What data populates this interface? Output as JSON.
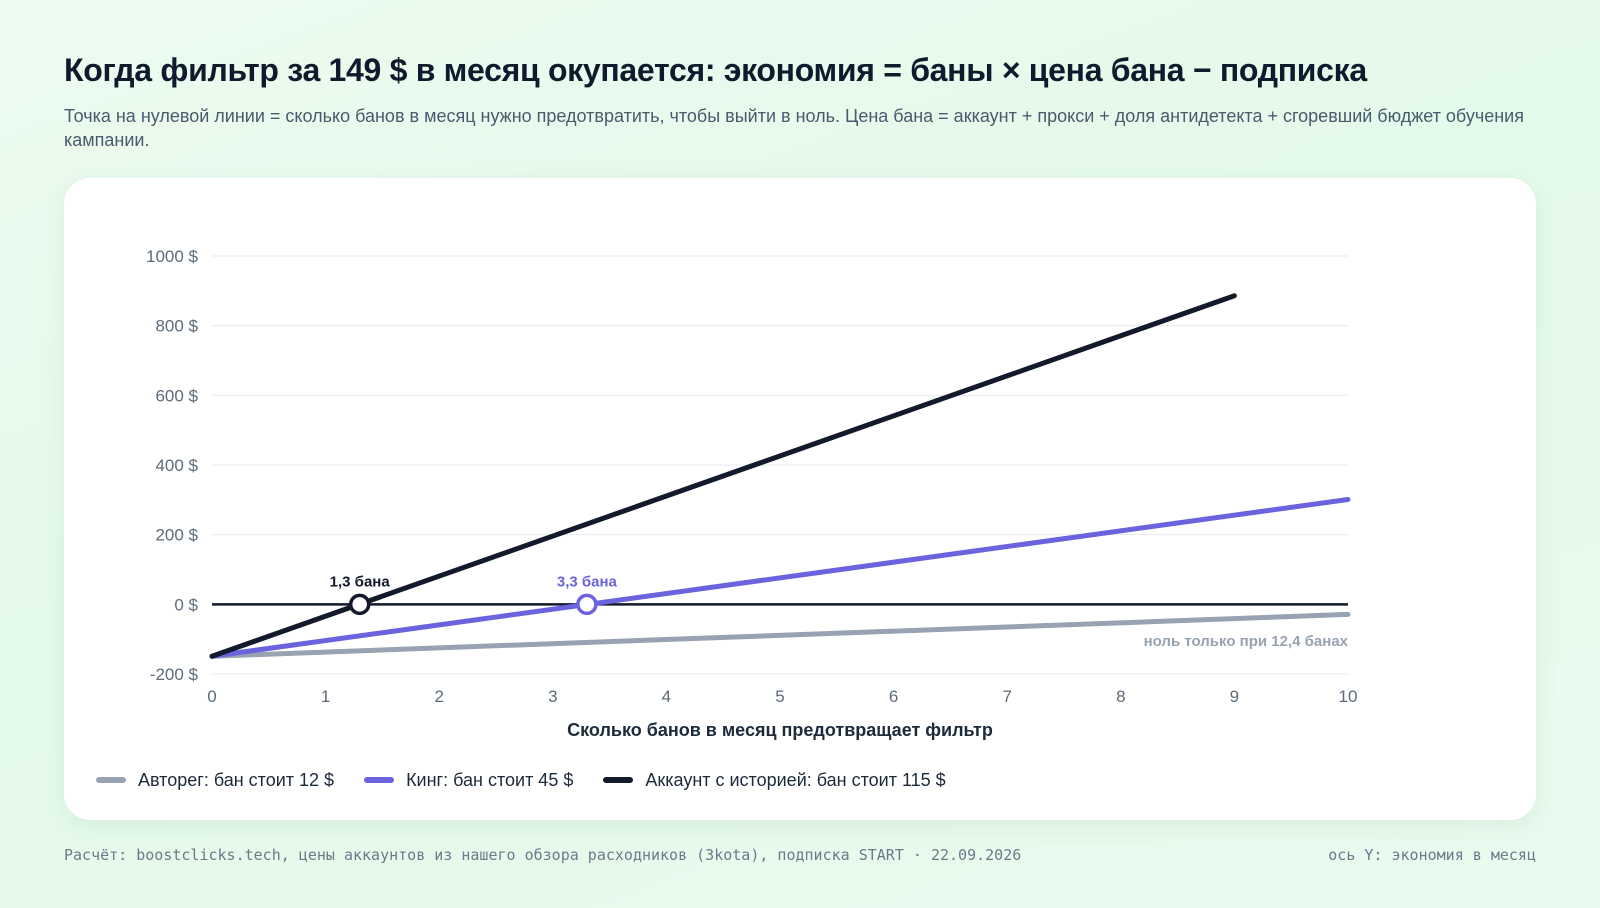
{
  "header": {
    "title": "Когда фильтр за 149 $ в месяц окупается: экономия = баны × цена бана − подписка",
    "subtitle": "Точка на нулевой линии = сколько банов в месяц нужно предотвратить, чтобы выйти в ноль. Цена бана = аккаунт + прокси + доля антидетекта + сгоревший бюджет обучения кампании."
  },
  "chart_data": {
    "type": "line",
    "title": "Когда фильтр за 149 $ в месяц окупается: экономия = баны × цена бана − подписка",
    "xlabel": "Сколько банов в месяц предотвращает фильтр",
    "ylabel": "ось Y: экономия в месяц",
    "xlim": [
      0,
      10
    ],
    "ylim": [
      -200,
      1000
    ],
    "x_ticks": [
      "0",
      "1",
      "2",
      "3",
      "4",
      "5",
      "6",
      "7",
      "8",
      "9",
      "10"
    ],
    "y_ticks": [
      {
        "value": 1000,
        "label": "1000 $"
      },
      {
        "value": 800,
        "label": "800 $"
      },
      {
        "value": 600,
        "label": "600 $"
      },
      {
        "value": 400,
        "label": "400 $"
      },
      {
        "value": 200,
        "label": "200 $"
      },
      {
        "value": 0,
        "label": "0 $"
      },
      {
        "value": -200,
        "label": "-200 $"
      }
    ],
    "grid": true,
    "legend_position": "bottom-left",
    "series": [
      {
        "name": "Авторег: бан стоит 12 $",
        "color": "#97a3b0",
        "x": [
          0,
          10
        ],
        "y": [
          -149,
          -29
        ]
      },
      {
        "name": "Кинг: бан стоит 45 $",
        "color": "#6b63dd",
        "x": [
          0,
          10
        ],
        "y": [
          -149,
          301
        ]
      },
      {
        "name": "Аккаунт с историей: бан стоит 115 $",
        "color": "#121a2c",
        "x": [
          0,
          9
        ],
        "y": [
          -149,
          886
        ]
      }
    ],
    "annotations": [
      {
        "text": "1,3 бана",
        "x": 1.3,
        "y": 0,
        "color": "#121a2c",
        "marker": true
      },
      {
        "text": "3,3 бана",
        "x": 3.3,
        "y": 0,
        "color": "#6b63dd",
        "marker": true
      },
      {
        "text": "ноль только при 12,4 банах",
        "x": 10,
        "y": -105,
        "color": "#97a3b0",
        "marker": false
      }
    ]
  },
  "footer": {
    "source": "Расчёт: boostclicks.tech, цены аккаунтов из нашего обзора расходников (3kota), подписка START · 22.09.2026",
    "axis_note": "ось Y: экономия в месяц"
  }
}
